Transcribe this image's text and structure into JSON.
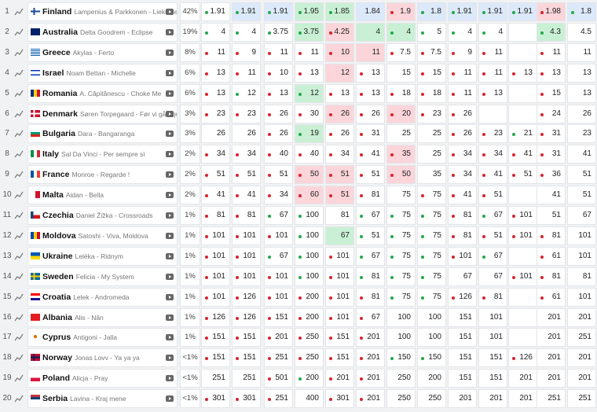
{
  "rows": [
    {
      "rank": 1,
      "country": "Finland",
      "entry": "Lampenius & Parkkonen - Liekinheitin",
      "chance": "42%",
      "odds": [
        1.91,
        1.91,
        1.91,
        1.95,
        1.85,
        1.84,
        1.9,
        1.8,
        1.91,
        1.91,
        1.91,
        1.98,
        1.8
      ],
      "trend": [
        "up",
        "up",
        "up",
        "up",
        "up",
        null,
        "down",
        "up",
        "up",
        "up",
        "up",
        "down",
        "up"
      ],
      "highlight": [
        null,
        "blue",
        "blue",
        "green",
        "green",
        "blue",
        "red",
        "blue",
        "blue",
        "blue",
        "blue",
        "red",
        "blue"
      ]
    },
    {
      "rank": 2,
      "country": "Australia",
      "entry": "Delta Goodrem - Eclipse",
      "chance": "19%",
      "odds": [
        4,
        4,
        3.75,
        3.75,
        4.25,
        4,
        4,
        5,
        4,
        4,
        null,
        4.3,
        4.5
      ],
      "trend": [
        "up",
        "up",
        "up",
        "up",
        "down",
        null,
        "up",
        "up",
        "up",
        "up",
        null,
        "up",
        null
      ],
      "highlight": [
        null,
        null,
        null,
        "green",
        "red",
        "green",
        "green",
        null,
        null,
        null,
        null,
        "green",
        null
      ]
    },
    {
      "rank": 3,
      "country": "Greece",
      "entry": "Akylas - Ferto",
      "chance": "8%",
      "odds": [
        11,
        9,
        11,
        11,
        10,
        11,
        7.5,
        7.5,
        9,
        11,
        null,
        11,
        11
      ],
      "trend": [
        "down",
        "down",
        "down",
        "down",
        "down",
        null,
        "down",
        "down",
        "down",
        "down",
        null,
        "down",
        null
      ],
      "highlight": [
        null,
        null,
        null,
        null,
        "red",
        "red",
        null,
        null,
        null,
        null,
        null,
        null,
        null
      ]
    },
    {
      "rank": 4,
      "country": "Israel",
      "entry": "Noam Bettan - Michelle",
      "chance": "6%",
      "odds": [
        13,
        11,
        10,
        13,
        12,
        13,
        15,
        15,
        11,
        11,
        13,
        13,
        13
      ],
      "trend": [
        "down",
        "down",
        "down",
        "down",
        null,
        "down",
        null,
        "down",
        "down",
        "down",
        "down",
        "down",
        null
      ],
      "highlight": [
        null,
        null,
        null,
        null,
        "red",
        null,
        null,
        null,
        null,
        null,
        null,
        null,
        null
      ]
    },
    {
      "rank": 5,
      "country": "Romania",
      "entry": "A. Căpitănescu - Choke Me",
      "chance": "6%",
      "odds": [
        13,
        12,
        13,
        12,
        13,
        13,
        18,
        18,
        11,
        13,
        null,
        15,
        13
      ],
      "trend": [
        "down",
        "up",
        "down",
        "up",
        "down",
        "down",
        "down",
        "down",
        "down",
        "down",
        null,
        "down",
        null
      ],
      "highlight": [
        null,
        null,
        null,
        "green",
        null,
        null,
        null,
        null,
        null,
        null,
        null,
        null,
        null
      ]
    },
    {
      "rank": 6,
      "country": "Denmark",
      "entry": "Søren Torpegaard - Før vi går hjem",
      "chance": "3%",
      "odds": [
        23,
        23,
        26,
        30,
        26,
        26,
        20,
        23,
        26,
        null,
        null,
        24,
        26
      ],
      "trend": [
        "down",
        "down",
        "down",
        "down",
        "down",
        "down",
        "down",
        "down",
        "down",
        null,
        null,
        "down",
        null
      ],
      "highlight": [
        null,
        null,
        null,
        null,
        "red",
        null,
        "red",
        null,
        null,
        null,
        null,
        null,
        null
      ]
    },
    {
      "rank": 7,
      "country": "Bulgaria",
      "entry": "Dara - Bangaranga",
      "chance": "3%",
      "odds": [
        26,
        26,
        26,
        19,
        26,
        31,
        25,
        25,
        26,
        23,
        21,
        31,
        23
      ],
      "trend": [
        null,
        null,
        "down",
        "up",
        "down",
        "down",
        null,
        null,
        "down",
        "down",
        "up",
        "down",
        null
      ],
      "highlight": [
        null,
        null,
        null,
        "green",
        null,
        null,
        null,
        null,
        null,
        null,
        null,
        null,
        null
      ]
    },
    {
      "rank": 8,
      "country": "Italy",
      "entry": "Sal Da Vinci - Per sempre sì",
      "chance": "2%",
      "odds": [
        34,
        34,
        40,
        40,
        34,
        41,
        35,
        25,
        34,
        34,
        41,
        31,
        41
      ],
      "trend": [
        "down",
        "down",
        "down",
        "down",
        "down",
        "down",
        "down",
        null,
        "down",
        "down",
        "down",
        "down",
        null
      ],
      "highlight": [
        null,
        null,
        null,
        null,
        null,
        null,
        "red",
        null,
        null,
        null,
        null,
        null,
        null
      ]
    },
    {
      "rank": 9,
      "country": "France",
      "entry": "Monroe - Regarde !",
      "chance": "2%",
      "odds": [
        51,
        51,
        51,
        50,
        51,
        51,
        50,
        35,
        34,
        41,
        51,
        36,
        51
      ],
      "trend": [
        "down",
        "down",
        "down",
        "down",
        "down",
        "down",
        "down",
        null,
        "down",
        "down",
        "down",
        "down",
        null
      ],
      "highlight": [
        null,
        null,
        null,
        "red",
        "red",
        null,
        "red",
        null,
        null,
        null,
        null,
        null,
        null
      ]
    },
    {
      "rank": 10,
      "country": "Malta",
      "entry": "Aidan - Bella",
      "chance": "2%",
      "odds": [
        41,
        41,
        34,
        60,
        51,
        81,
        75,
        75,
        41,
        51,
        null,
        41,
        51
      ],
      "trend": [
        "down",
        "down",
        "down",
        "down",
        "down",
        "down",
        null,
        "down",
        "down",
        "down",
        null,
        null,
        null
      ],
      "highlight": [
        null,
        null,
        null,
        "red",
        "red",
        null,
        null,
        null,
        null,
        null,
        null,
        null,
        null
      ]
    },
    {
      "rank": 11,
      "country": "Czechia",
      "entry": "Daniel Žižka - Crossroads",
      "chance": "1%",
      "odds": [
        81,
        81,
        67,
        100,
        81,
        67,
        75,
        75,
        81,
        67,
        101,
        51,
        67
      ],
      "trend": [
        "down",
        "down",
        "up",
        "up",
        null,
        "up",
        "up",
        "up",
        "down",
        "up",
        "down",
        null,
        null
      ],
      "highlight": [
        null,
        null,
        null,
        null,
        null,
        null,
        null,
        null,
        null,
        null,
        null,
        null,
        null
      ]
    },
    {
      "rank": 12,
      "country": "Moldova",
      "entry": "Satoshi - Viva, Moldova",
      "chance": "1%",
      "odds": [
        101,
        101,
        101,
        100,
        67,
        51,
        75,
        75,
        81,
        51,
        101,
        81,
        101
      ],
      "trend": [
        "down",
        "down",
        "down",
        "up",
        null,
        "up",
        "up",
        "up",
        "down",
        "down",
        "down",
        "down",
        null
      ],
      "highlight": [
        null,
        null,
        null,
        null,
        "green",
        null,
        null,
        null,
        null,
        null,
        null,
        null,
        null
      ]
    },
    {
      "rank": 13,
      "country": "Ukraine",
      "entry": "Leléka - Ridnym",
      "chance": "1%",
      "odds": [
        101,
        101,
        67,
        100,
        101,
        67,
        75,
        75,
        101,
        67,
        null,
        61,
        101
      ],
      "trend": [
        "down",
        "down",
        "up",
        "up",
        "down",
        "up",
        "up",
        "up",
        "down",
        "up",
        null,
        "down",
        null
      ],
      "highlight": [
        null,
        null,
        null,
        null,
        null,
        null,
        null,
        null,
        null,
        null,
        null,
        null,
        null
      ]
    },
    {
      "rank": 14,
      "country": "Sweden",
      "entry": "Felicia - My System",
      "chance": "1%",
      "odds": [
        101,
        101,
        101,
        100,
        101,
        81,
        75,
        75,
        67,
        67,
        101,
        81,
        81
      ],
      "trend": [
        "down",
        "down",
        "down",
        "up",
        "down",
        "up",
        "up",
        "up",
        null,
        null,
        "down",
        "down",
        null
      ],
      "highlight": [
        null,
        null,
        null,
        null,
        null,
        null,
        null,
        null,
        null,
        null,
        null,
        null,
        null
      ]
    },
    {
      "rank": 15,
      "country": "Croatia",
      "entry": "Lelek - Andromeda",
      "chance": "1%",
      "odds": [
        101,
        126,
        101,
        200,
        101,
        81,
        75,
        75,
        126,
        81,
        null,
        61,
        101
      ],
      "trend": [
        "down",
        "down",
        "down",
        "down",
        "down",
        "down",
        "up",
        "up",
        "down",
        "down",
        null,
        "down",
        null
      ],
      "highlight": [
        null,
        null,
        null,
        null,
        null,
        null,
        null,
        null,
        null,
        null,
        null,
        null,
        null
      ]
    },
    {
      "rank": 16,
      "country": "Albania",
      "entry": "Alis - Nân",
      "chance": "1%",
      "odds": [
        126,
        126,
        151,
        200,
        101,
        67,
        100,
        100,
        151,
        101,
        null,
        201,
        201
      ],
      "trend": [
        "down",
        "down",
        "down",
        "down",
        "down",
        "down",
        null,
        null,
        null,
        null,
        null,
        null,
        null
      ],
      "highlight": [
        null,
        null,
        null,
        null,
        null,
        null,
        null,
        null,
        null,
        null,
        null,
        null,
        null
      ]
    },
    {
      "rank": 17,
      "country": "Cyprus",
      "entry": "Antigoni - Jalla",
      "chance": "1%",
      "odds": [
        151,
        151,
        201,
        250,
        151,
        201,
        100,
        100,
        151,
        101,
        null,
        201,
        251
      ],
      "trend": [
        "down",
        "down",
        "down",
        "down",
        "down",
        "down",
        null,
        null,
        null,
        null,
        null,
        null,
        null
      ],
      "highlight": [
        null,
        null,
        null,
        null,
        null,
        null,
        null,
        null,
        null,
        null,
        null,
        null,
        null
      ]
    },
    {
      "rank": 18,
      "country": "Norway",
      "entry": "Jonas Lovv - Ya ya ya",
      "chance": "<1%",
      "odds": [
        151,
        151,
        251,
        250,
        151,
        201,
        150,
        150,
        151,
        151,
        126,
        201,
        201
      ],
      "trend": [
        "down",
        "down",
        "down",
        "down",
        "down",
        "down",
        "up",
        "up",
        null,
        null,
        "down",
        null,
        null
      ],
      "highlight": [
        null,
        null,
        null,
        null,
        null,
        null,
        null,
        null,
        null,
        null,
        null,
        null,
        null
      ]
    },
    {
      "rank": 19,
      "country": "Poland",
      "entry": "Alicja - Pray",
      "chance": "<1%",
      "odds": [
        251,
        251,
        501,
        200,
        201,
        201,
        250,
        200,
        151,
        151,
        201,
        201,
        201
      ],
      "trend": [
        null,
        null,
        "down",
        "up",
        "down",
        "down",
        null,
        null,
        null,
        null,
        null,
        null,
        null
      ],
      "highlight": [
        null,
        null,
        null,
        null,
        null,
        null,
        null,
        null,
        null,
        null,
        null,
        null,
        null
      ]
    },
    {
      "rank": 20,
      "country": "Serbia",
      "entry": "Lavina - Kraj mene",
      "chance": "<1%",
      "odds": [
        301,
        301,
        251,
        400,
        301,
        201,
        250,
        250,
        201,
        201,
        201,
        251,
        251
      ],
      "trend": [
        "down",
        "down",
        "down",
        null,
        "down",
        "down",
        null,
        null,
        null,
        null,
        null,
        null,
        null
      ],
      "highlight": [
        null,
        null,
        null,
        null,
        null,
        null,
        null,
        null,
        null,
        null,
        null,
        null,
        null
      ]
    }
  ]
}
